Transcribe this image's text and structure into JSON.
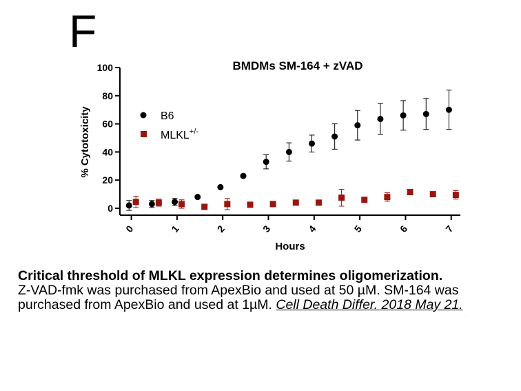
{
  "panel_label": "F",
  "caption": {
    "title": "Critical threshold of MLKL expression determines oligomerization.",
    "body": "Z-VAD-fmk was purchased from ApexBio and used at 50 µM. SM-164 was purchased from ApexBio and used at 1µM.",
    "citation": "Cell Death Differ. 2018 May 21."
  },
  "chart_data": {
    "type": "scatter",
    "title": "BMDMs SM-164 + zVAD",
    "xlabel": "Hours",
    "ylabel": "% Cytotoxicity",
    "xlim": [
      -0.25,
      7.2
    ],
    "ylim": [
      0,
      100
    ],
    "xticks": [
      "0",
      "1",
      "2",
      "3",
      "4",
      "5",
      "6",
      "7"
    ],
    "yticks": [
      "0",
      "20",
      "40",
      "60",
      "80",
      "100"
    ],
    "legend": [
      "B6",
      "MLKL"
    ],
    "legend_superscript": "+/-",
    "colors": {
      "B6": "#000000",
      "MLKL": "#9a1510",
      "axis": "#000000"
    },
    "series": [
      {
        "name": "B6",
        "marker": "circle",
        "x": [
          -0.05,
          0.45,
          0.95,
          1.45,
          1.95,
          2.45,
          2.95,
          3.45,
          3.95,
          4.45,
          4.95,
          5.45,
          5.95,
          6.45,
          6.95
        ],
        "y": [
          2,
          3,
          4.5,
          8,
          15,
          23,
          33,
          40,
          46,
          51,
          59,
          63.5,
          66,
          67,
          70
        ],
        "err": [
          3.5,
          2.5,
          2.5,
          0,
          0,
          0,
          5,
          6.5,
          6,
          9,
          10.5,
          11,
          10.5,
          11,
          14
        ]
      },
      {
        "name": "MLKL",
        "marker": "square",
        "x": [
          0.1,
          0.6,
          1.1,
          1.6,
          2.1,
          2.6,
          3.1,
          3.6,
          4.1,
          4.6,
          5.1,
          5.6,
          6.1,
          6.6,
          7.1
        ],
        "y": [
          4.5,
          4,
          3,
          1,
          3,
          2.5,
          3,
          4,
          4,
          7.5,
          6,
          8,
          11.5,
          10,
          9.5
        ],
        "err": [
          4,
          2.5,
          3,
          0,
          4,
          0,
          0,
          0,
          0,
          6,
          0,
          3,
          0,
          0,
          3
        ]
      }
    ]
  }
}
